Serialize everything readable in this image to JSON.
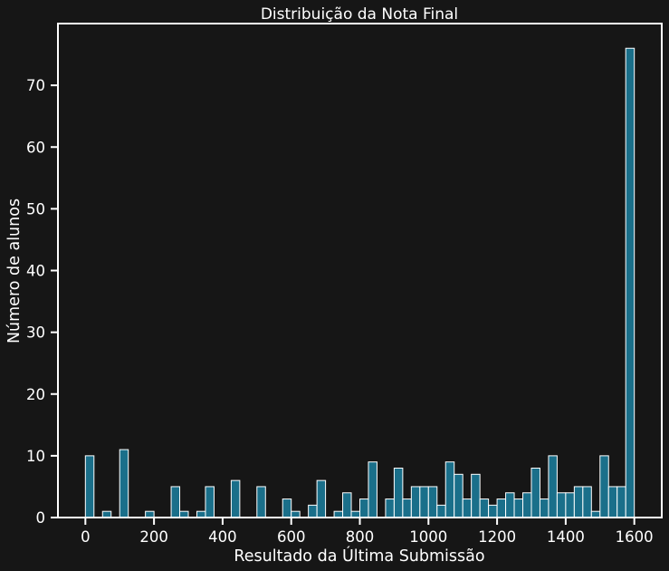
{
  "chart_data": {
    "type": "bar",
    "title": "Distribuição da Nota Final",
    "xlabel": "Resultado da Última Submissão",
    "ylabel": "Número de alunos",
    "xlim": [
      -80,
      1680
    ],
    "ylim": [
      0,
      80
    ],
    "xticks": [
      0,
      200,
      400,
      600,
      800,
      1000,
      1200,
      1400,
      1600
    ],
    "yticks": [
      0,
      10,
      20,
      30,
      40,
      50,
      60,
      70
    ],
    "bin_width": 25,
    "bin_starts": [
      0,
      50,
      100,
      175,
      250,
      275,
      325,
      350,
      425,
      500,
      575,
      600,
      650,
      675,
      725,
      750,
      775,
      800,
      825,
      875,
      900,
      925,
      950,
      975,
      1000,
      1025,
      1050,
      1075,
      1100,
      1125,
      1150,
      1175,
      1200,
      1225,
      1250,
      1275,
      1300,
      1325,
      1350,
      1375,
      1400,
      1425,
      1450,
      1475,
      1500,
      1525,
      1550,
      1575
    ],
    "values": [
      10,
      1,
      11,
      1,
      5,
      1,
      1,
      5,
      6,
      5,
      3,
      1,
      2,
      6,
      1,
      4,
      1,
      3,
      9,
      3,
      8,
      3,
      5,
      5,
      5,
      2,
      9,
      7,
      3,
      7,
      3,
      2,
      3,
      4,
      3,
      4,
      8,
      3,
      10,
      4,
      4,
      5,
      5,
      1,
      10,
      5,
      5,
      76
    ],
    "colors": {
      "bar": "#1a6f8a",
      "bar_edge": "#ffffff",
      "background": "#161616",
      "axes": "#ffffff",
      "text": "#ffffff"
    },
    "grid": false,
    "legend": "none"
  }
}
